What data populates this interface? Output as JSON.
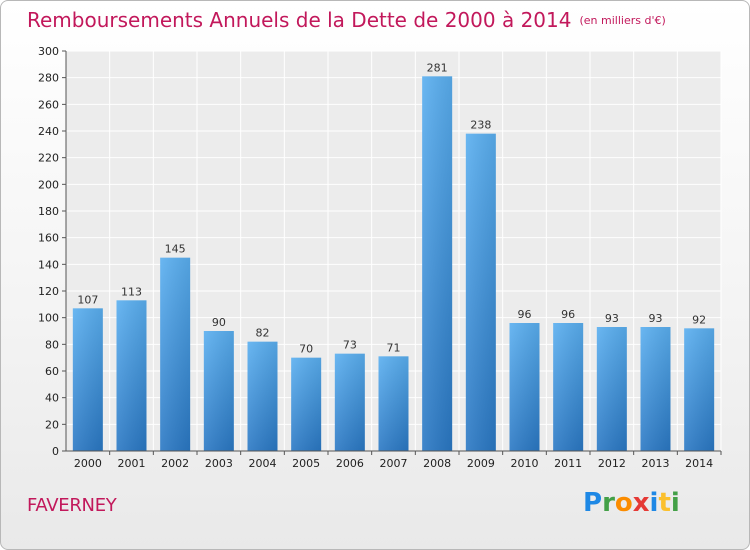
{
  "chart_data": {
    "type": "bar",
    "title": "Remboursements Annuels de la Dette de 2000 à 2014",
    "subtitle": "(en milliers d'€)",
    "categories": [
      "2000",
      "2001",
      "2002",
      "2003",
      "2004",
      "2005",
      "2006",
      "2007",
      "2008",
      "2009",
      "2010",
      "2011",
      "2012",
      "2013",
      "2014"
    ],
    "values": [
      107,
      113,
      145,
      90,
      82,
      70,
      73,
      71,
      281,
      238,
      96,
      96,
      93,
      93,
      92
    ],
    "xlabel": "",
    "ylabel": "",
    "ylim": [
      0,
      300
    ],
    "yticks": [
      0,
      20,
      40,
      60,
      80,
      100,
      120,
      140,
      160,
      180,
      200,
      220,
      240,
      260,
      280,
      300
    ],
    "grid": true,
    "bar_color": "#3a8fd8"
  },
  "footer": {
    "place": "FAVERNEY",
    "logo": "Proxiti"
  }
}
